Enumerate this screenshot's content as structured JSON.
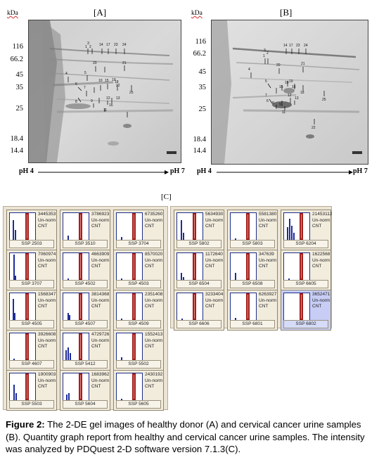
{
  "panel_a": {
    "label": "[A]",
    "kda_label": "kDa",
    "mw_markers": [
      "116",
      "66.2",
      "45",
      "35",
      "25",
      "18.4",
      "14.4"
    ],
    "ph_left": "pH 4",
    "ph_right": "pH 7",
    "spot_numbers": [
      "1",
      "2",
      "3",
      "14",
      "17",
      "23",
      "24",
      "4",
      "20",
      "21",
      "5",
      "6",
      "7",
      "8",
      "9",
      "10",
      "11",
      "12",
      "13",
      "15",
      "16",
      "18",
      "19",
      "22",
      "25"
    ]
  },
  "panel_b": {
    "label": "[B]",
    "kda_label": "kDa",
    "mw_markers": [
      "116",
      "66.2",
      "45",
      "35",
      "25",
      "18.4",
      "14.4"
    ],
    "ph_left": "pH 4",
    "ph_right": "pH 7",
    "spot_numbers": [
      "1",
      "2",
      "3",
      "14",
      "17",
      "23",
      "24",
      "4",
      "20",
      "21",
      "5",
      "6",
      "7",
      "8",
      "9",
      "10",
      "11",
      "12",
      "13",
      "15",
      "16",
      "18",
      "19",
      "22",
      "25"
    ]
  },
  "panel_c": {
    "label": "[C]",
    "unit_line1": "Un-norm",
    "unit_line2": "CNT",
    "left_tiles": [
      {
        "ssp": "SSP 2503",
        "value": "3445353"
      },
      {
        "ssp": "SSP 3510",
        "value": "3786923"
      },
      {
        "ssp": "SSP 3704",
        "value": "6735260"
      },
      {
        "ssp": "SSP 3707",
        "value": "7060974"
      },
      {
        "ssp": "SSP 4502",
        "value": "4663909"
      },
      {
        "ssp": "SSP 4503",
        "value": "8570020"
      },
      {
        "ssp": "SSP 4505",
        "value": "1568347"
      },
      {
        "ssp": "SSP 4507",
        "value": "3814368"
      },
      {
        "ssp": "SSP 4509",
        "value": "2351408"
      },
      {
        "ssp": "SSP 4607",
        "value": "3926608"
      },
      {
        "ssp": "SSP 5412",
        "value": "4729726"
      },
      {
        "ssp": "SSP 5502",
        "value": "1552413"
      },
      {
        "ssp": "SSP 5503",
        "value": "1900903"
      },
      {
        "ssp": "SSP 5604",
        "value": "1683962"
      },
      {
        "ssp": "SSP 5605",
        "value": "2430192"
      }
    ],
    "right_tiles": [
      {
        "ssp": "SSP 5802",
        "value": "5634930"
      },
      {
        "ssp": "SSP 5803",
        "value": "5581380"
      },
      {
        "ssp": "SSP 6204",
        "value": "21453112"
      },
      {
        "ssp": "SSP 6504",
        "value": "1172640"
      },
      {
        "ssp": "SSP 6508",
        "value": "347639"
      },
      {
        "ssp": "SSP 6605",
        "value": "1622568"
      },
      {
        "ssp": "SSP 6606",
        "value": "3233404"
      },
      {
        "ssp": "SSP 6801",
        "value": "6263927"
      },
      {
        "ssp": "SSP 6802",
        "value": "3652471"
      }
    ]
  },
  "caption": {
    "label": "Figure 2:",
    "text": "The 2-DE gel images of healthy donor (A) and cervical cancer urine samples (B). Quantity graph report from healthy and cervical cancer urine samples. The intensity was analyzed by PDQuest 2-D software version 7.1.3(C)."
  },
  "colors": {
    "red_bar": "#a2201d",
    "blue_bar": "#1e2c99",
    "tile_bg": "#f2ecdd",
    "selected_tile_bg": "#c7cdf4"
  }
}
